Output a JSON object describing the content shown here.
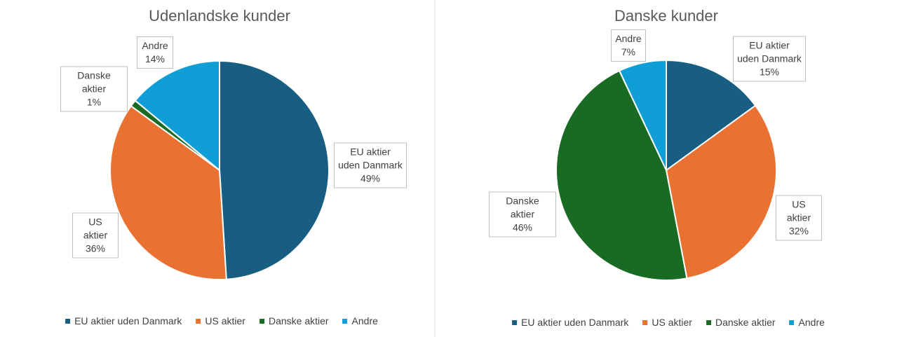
{
  "chart_data": [
    {
      "type": "pie",
      "title": "Udenlandske kunder",
      "categories": [
        "EU aktier uden Danmark",
        "US aktier",
        "Danske aktier",
        "Andre"
      ],
      "values": [
        49,
        36,
        1,
        14
      ],
      "value_labels": [
        "49%",
        "36%",
        "1%",
        "14%"
      ],
      "colors": [
        "#175e82",
        "#e97132",
        "#196b24",
        "#0f9ed5"
      ]
    },
    {
      "type": "pie",
      "title": "Danske kunder",
      "categories": [
        "EU aktier uden Danmark",
        "US aktier",
        "Danske aktier",
        "Andre"
      ],
      "values": [
        15,
        32,
        46,
        7
      ],
      "value_labels": [
        "15%",
        "32%",
        "46%",
        "7%"
      ],
      "colors": [
        "#175e82",
        "#e97132",
        "#196b24",
        "#0f9ed5"
      ]
    }
  ]
}
